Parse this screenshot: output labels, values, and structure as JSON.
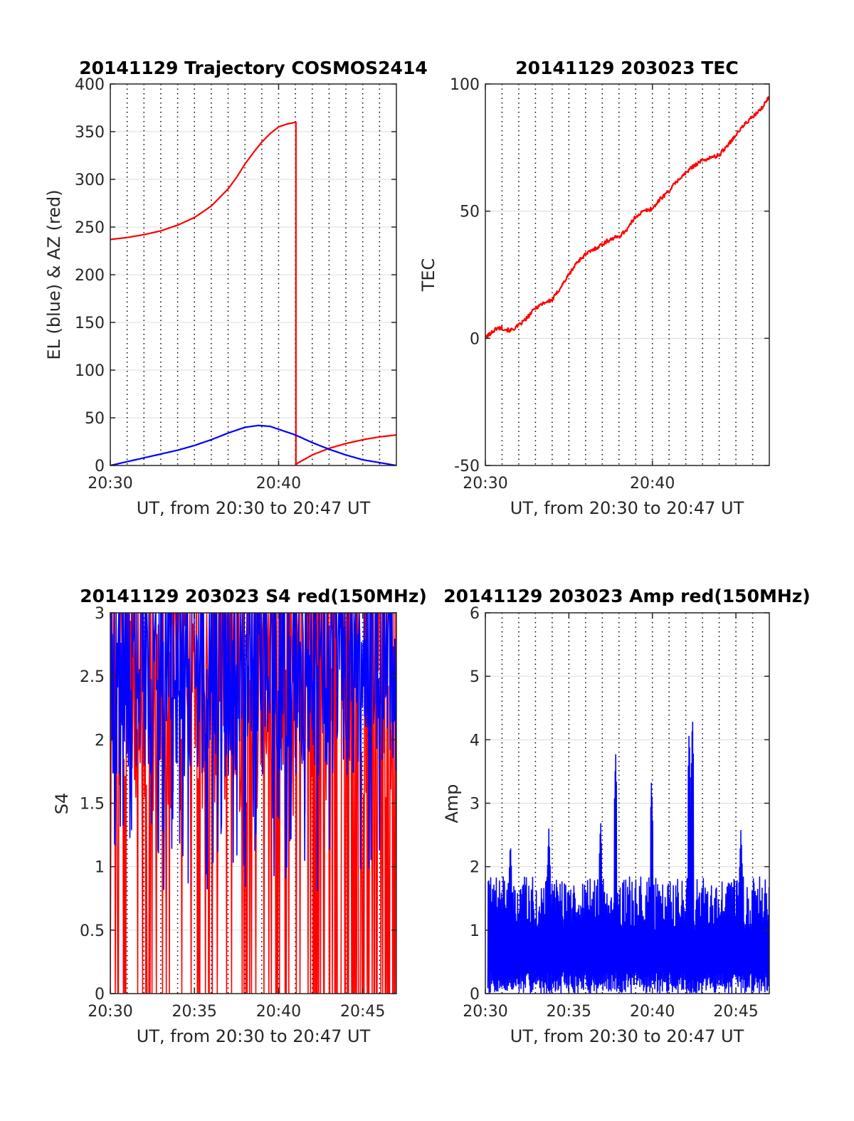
{
  "chart_data": [
    {
      "id": "traj",
      "type": "line",
      "title": "20141129 Trajectory COSMOS2414",
      "xlabel": "UT, from 20:30 to 20:47 UT",
      "ylabel": "EL (blue) & AZ (red)",
      "xlim": [
        0,
        17
      ],
      "ylim": [
        0,
        400
      ],
      "xticks": [
        {
          "v": 0,
          "label": "20:30"
        },
        {
          "v": 10,
          "label": "20:40"
        }
      ],
      "yticks": [
        {
          "v": 0,
          "label": "0"
        },
        {
          "v": 50,
          "label": "50"
        },
        {
          "v": 100,
          "label": "100"
        },
        {
          "v": 150,
          "label": "150"
        },
        {
          "v": 200,
          "label": "200"
        },
        {
          "v": 250,
          "label": "250"
        },
        {
          "v": 300,
          "label": "300"
        },
        {
          "v": 350,
          "label": "350"
        },
        {
          "v": 400,
          "label": "400"
        }
      ],
      "grid": true,
      "series": [
        {
          "color": "#ff0000",
          "x": [
            0,
            1,
            2,
            3,
            4,
            5,
            6,
            7,
            7.5,
            8,
            8.5,
            9,
            9.5,
            10,
            10.5,
            11.03,
            11.03,
            11.08,
            12,
            13,
            14,
            15,
            16,
            17
          ],
          "y": [
            237,
            239,
            242,
            246,
            252,
            260,
            272,
            290,
            302,
            316,
            328,
            339,
            348,
            355,
            358,
            360,
            0,
            2,
            11,
            18,
            23,
            27,
            30,
            32
          ]
        },
        {
          "color": "#0000ff",
          "x": [
            0,
            1,
            2,
            3,
            4,
            5,
            6,
            7,
            8,
            8.8,
            9.5,
            10,
            11,
            12,
            13,
            14,
            15,
            16,
            17
          ],
          "y": [
            0,
            4,
            8,
            12,
            16,
            21,
            27,
            34,
            40,
            42,
            41,
            38,
            32,
            24,
            17,
            11,
            6,
            3,
            0
          ]
        }
      ]
    },
    {
      "id": "tec",
      "type": "line",
      "title": "20141129 203023 TEC",
      "xlabel": "UT, from 20:30 to 20:47 UT",
      "ylabel": "TEC",
      "xlim": [
        0,
        17
      ],
      "ylim": [
        -50,
        100
      ],
      "xticks": [
        {
          "v": 0,
          "label": "20:30"
        },
        {
          "v": 10,
          "label": "20:40"
        }
      ],
      "yticks": [
        {
          "v": -50,
          "label": "-50"
        },
        {
          "v": 0,
          "label": "0"
        },
        {
          "v": 50,
          "label": "50"
        },
        {
          "v": 100,
          "label": "100"
        }
      ],
      "grid": true,
      "series": [
        {
          "color": "#ff0000",
          "x": [
            0,
            0.3,
            0.7,
            1,
            1.5,
            2,
            2.5,
            3,
            3.5,
            4,
            4.5,
            5,
            5.5,
            6,
            6.5,
            7,
            7.5,
            8,
            8.5,
            9,
            9.5,
            10,
            10.5,
            11,
            11.5,
            12,
            12.5,
            13,
            13.5,
            14,
            14.5,
            15,
            15.5,
            16,
            16.5,
            17
          ],
          "y": [
            0,
            2,
            4,
            4,
            3,
            5,
            8,
            12,
            14,
            15,
            20,
            25,
            30,
            33,
            35,
            37,
            39,
            40,
            43,
            48,
            50,
            51,
            55,
            58,
            62,
            65,
            68,
            70,
            71,
            72,
            76,
            80,
            84,
            87,
            90,
            95
          ]
        }
      ]
    },
    {
      "id": "s4",
      "type": "line",
      "title": "20141129 203023 S4 red(150MHz)",
      "xlabel": "UT, from 20:30 to 20:47 UT",
      "ylabel": "S4",
      "xlim": [
        0,
        17
      ],
      "ylim": [
        0,
        3
      ],
      "xticks": [
        {
          "v": 0,
          "label": "20:30"
        },
        {
          "v": 5,
          "label": "20:35"
        },
        {
          "v": 10,
          "label": "20:40"
        },
        {
          "v": 15,
          "label": "20:45"
        }
      ],
      "yticks": [
        {
          "v": 0,
          "label": "0"
        },
        {
          "v": 0.5,
          "label": "0.5"
        },
        {
          "v": 1,
          "label": "1"
        },
        {
          "v": 1.5,
          "label": "1.5"
        },
        {
          "v": 2,
          "label": "2"
        },
        {
          "v": 2.5,
          "label": "2.5"
        },
        {
          "v": 3,
          "label": "3"
        }
      ],
      "grid": true,
      "series": [
        {
          "color": "#ff0000",
          "style": "noisy",
          "seed": 11,
          "n": 460,
          "base": 2.2,
          "spread": 0.8,
          "drop": 0.32,
          "drop_late": 0.6,
          "late_from": 12,
          "max": 3
        },
        {
          "color": "#0000ff",
          "style": "noisy",
          "seed": 29,
          "n": 540,
          "base": 2.3,
          "spread": 0.6,
          "low": 1.4,
          "max": 3
        }
      ]
    },
    {
      "id": "amp",
      "type": "line",
      "title": "20141129 203023 Amp red(150MHz)",
      "xlabel": "UT, from 20:30 to 20:47 UT",
      "ylabel": "Amp",
      "xlim": [
        0,
        17
      ],
      "ylim": [
        0,
        6
      ],
      "xticks": [
        {
          "v": 0,
          "label": "20:30"
        },
        {
          "v": 5,
          "label": "20:35"
        },
        {
          "v": 10,
          "label": "20:40"
        },
        {
          "v": 15,
          "label": "20:45"
        }
      ],
      "yticks": [
        {
          "v": 0,
          "label": "0"
        },
        {
          "v": 1,
          "label": "1"
        },
        {
          "v": 2,
          "label": "2"
        },
        {
          "v": 3,
          "label": "3"
        },
        {
          "v": 4,
          "label": "4"
        },
        {
          "v": 5,
          "label": "5"
        },
        {
          "v": 6,
          "label": "6"
        }
      ],
      "grid": true,
      "series": [
        {
          "color": "#0000ff",
          "style": "dense",
          "seed": 7,
          "n": 900,
          "typical": 1.6,
          "peaks": [
            [
              1.5,
              2.4
            ],
            [
              3.8,
              2.6
            ],
            [
              7.8,
              3.85
            ],
            [
              6.9,
              2.75
            ],
            [
              9.95,
              3.4
            ],
            [
              12.4,
              4.45
            ],
            [
              12.2,
              4.2
            ],
            [
              15.3,
              2.6
            ]
          ]
        }
      ]
    }
  ]
}
